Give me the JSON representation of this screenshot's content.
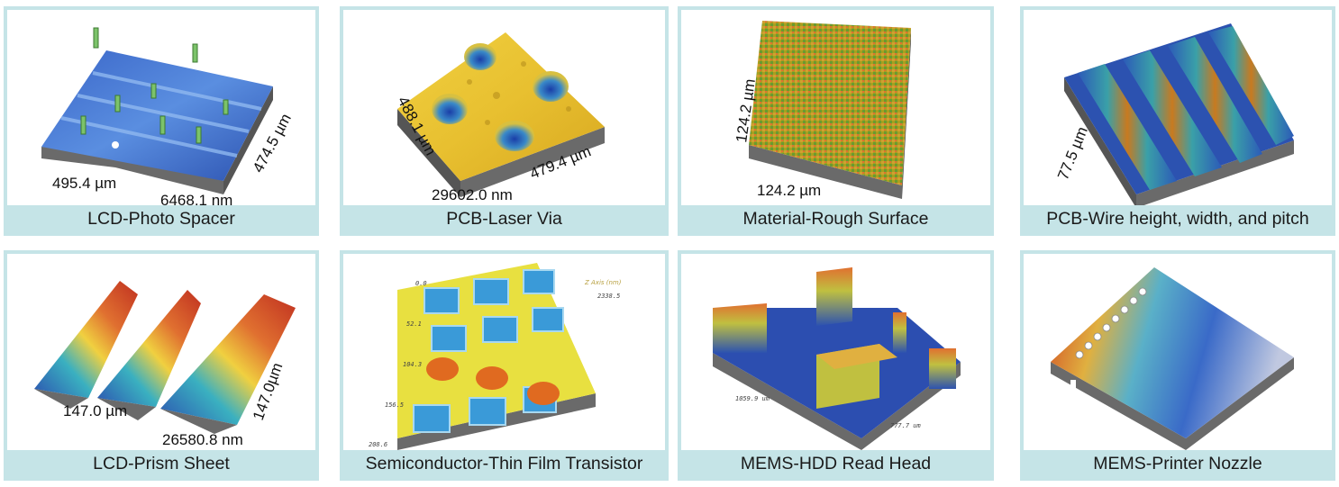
{
  "colors": {
    "frame": "#c5e4e7",
    "caption_bg": "#c5e4e7"
  },
  "tiles": [
    {
      "caption": "LCD-Photo Spacer",
      "dims": [
        "495.4 µm",
        "6468.1 nm",
        "474.5 µm"
      ]
    },
    {
      "caption": "PCB-Laser Via",
      "dims": [
        "488.1 µm",
        "479.4 µm",
        "29602.0 nm"
      ]
    },
    {
      "caption": "Material-Rough Surface",
      "dims": [
        "124.2 µm",
        "124.2 µm"
      ]
    },
    {
      "caption": "PCB-Wire height, width, and pitch",
      "dims": [
        "77.5 µm"
      ]
    },
    {
      "caption": "LCD-Prism Sheet",
      "dims": [
        "147.0 µm",
        "26580.8 nm",
        "147.0µm"
      ]
    },
    {
      "caption": "Semiconductor-Thin Film Transistor",
      "dims": [
        "0.0",
        "52.1",
        "104.3",
        "156.5",
        "208.6",
        "Z Axis (nm)",
        "2338.5"
      ]
    },
    {
      "caption": "MEMS-HDD Read Head",
      "dims": [
        "1059.9 um",
        "777.7 um"
      ]
    },
    {
      "caption": "MEMS-Printer Nozzle",
      "dims": []
    }
  ]
}
